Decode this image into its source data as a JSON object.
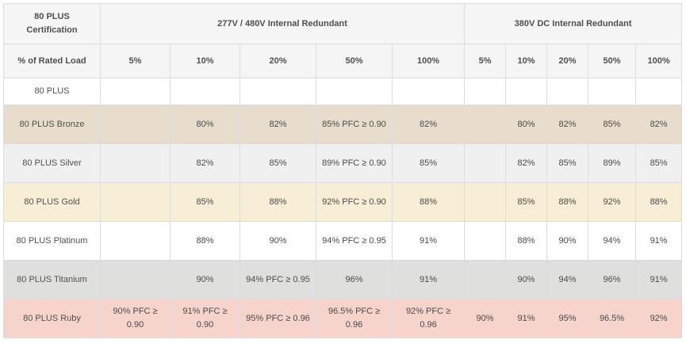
{
  "header": {
    "certification": "80 PLUS Certification",
    "group_ac": "277V / 480V Internal Redundant",
    "group_dc": "380V DC Internal Redundant",
    "rated_load": "% of Rated Load",
    "ac_loads": [
      "5%",
      "10%",
      "20%",
      "50%",
      "100%"
    ],
    "dc_loads": [
      "5%",
      "10%",
      "20%",
      "50%",
      "100%"
    ]
  },
  "rows": [
    {
      "name": "80 PLUS",
      "bg": "#ffffff",
      "ac": [
        "",
        "",
        "",
        "",
        ""
      ],
      "dc": [
        "",
        "",
        "",
        "",
        ""
      ]
    },
    {
      "name": "80 PLUS Bronze",
      "bg": "#e8ddcc",
      "ac": [
        "",
        "80%",
        "82%",
        "85% PFC ≥ 0.90",
        "82%"
      ],
      "dc": [
        "",
        "80%",
        "82%",
        "85%",
        "82%"
      ]
    },
    {
      "name": "80 PLUS Silver",
      "bg": "#f0f0f0",
      "ac": [
        "",
        "82%",
        "85%",
        "89% PFC ≥ 0.90",
        "85%"
      ],
      "dc": [
        "",
        "82%",
        "85%",
        "89%",
        "85%"
      ]
    },
    {
      "name": "80 PLUS Gold",
      "bg": "#f8eed6",
      "ac": [
        "",
        "85%",
        "88%",
        "92% PFC ≥ 0.90",
        "88%"
      ],
      "dc": [
        "",
        "85%",
        "88%",
        "92%",
        "88%"
      ]
    },
    {
      "name": "80 PLUS Platinum",
      "bg": "#ffffff",
      "ac": [
        "",
        "88%",
        "90%",
        "94% PFC ≥ 0.95",
        "91%"
      ],
      "dc": [
        "",
        "88%",
        "90%",
        "94%",
        "91%"
      ]
    },
    {
      "name": "80 PLUS Titanium",
      "bg": "#dfe0de",
      "ac": [
        "",
        "90%",
        "94% PFC ≥ 0.95",
        "96%",
        "91%"
      ],
      "dc": [
        "",
        "90%",
        "94%",
        "96%",
        "91%"
      ]
    },
    {
      "name": "80 PLUS Ruby",
      "bg": "#f6d4cb",
      "ac": [
        "90% PFC ≥ 0.90",
        "91% PFC ≥ 0.90",
        "95% PFC ≥ 0.96",
        "96.5% PFC ≥ 0.96",
        "92% PFC ≥ 0.96"
      ],
      "dc": [
        "90%",
        "91%",
        "95%",
        "96.5%",
        "92%"
      ]
    }
  ]
}
